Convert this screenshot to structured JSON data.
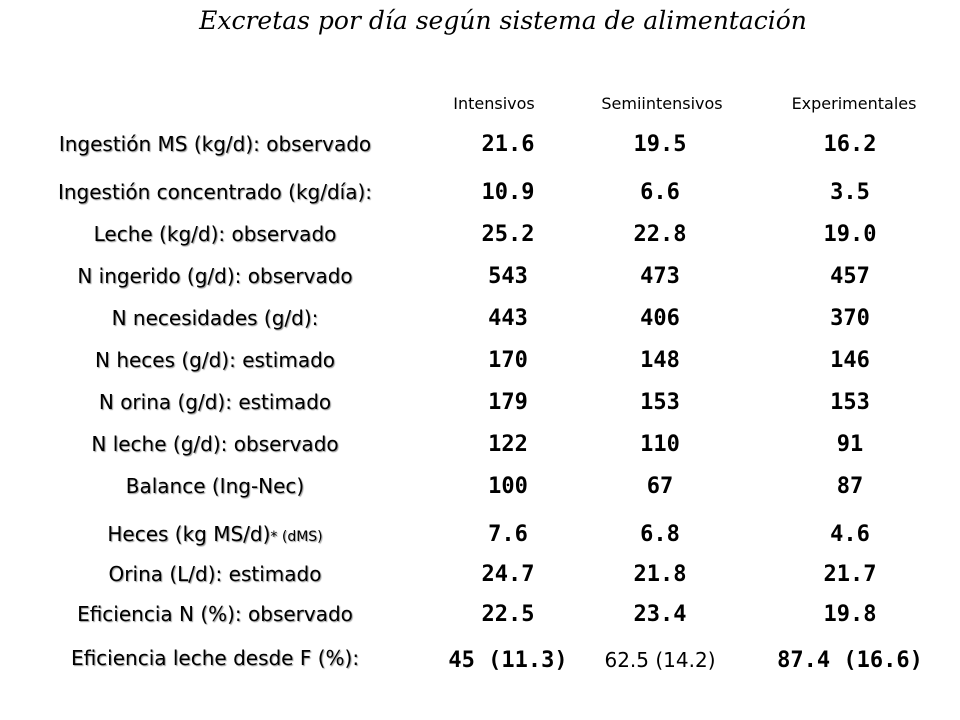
{
  "title": "Excretas por día según sistema de alimentación",
  "columns": [
    "Intensivos",
    "Semiintensivos",
    "Experimentales"
  ],
  "rows": [
    {
      "label": "Ingestión MS (kg/d): observado",
      "note": "",
      "values": [
        "21.6",
        "19.5",
        "16.2"
      ]
    },
    {
      "label": "Ingestión concentrado (kg/día):",
      "note": "",
      "values": [
        "10.9",
        "6.6",
        "3.5"
      ]
    },
    {
      "label": "Leche (kg/d): observado",
      "note": "",
      "values": [
        "25.2",
        "22.8",
        "19.0"
      ]
    },
    {
      "label": "N ingerido (g/d): observado",
      "note": "",
      "values": [
        "543",
        "473",
        "457"
      ]
    },
    {
      "label": "N necesidades (g/d):",
      "note": "",
      "values": [
        "443",
        "406",
        "370"
      ]
    },
    {
      "label": "N heces (g/d): estimado",
      "note": "",
      "values": [
        "170",
        "148",
        "146"
      ]
    },
    {
      "label": "N orina (g/d): estimado",
      "note": "",
      "values": [
        "179",
        "153",
        "153"
      ]
    },
    {
      "label": "N leche (g/d): observado",
      "note": "",
      "values": [
        "122",
        "110",
        "91"
      ]
    },
    {
      "label": "Balance (Ing-Nec)",
      "note": "",
      "values": [
        "100",
        "67",
        "87"
      ]
    },
    {
      "label": "Heces (kg MS/d)",
      "note": "* (dMS)",
      "values": [
        "7.6",
        "6.8",
        "4.6"
      ]
    },
    {
      "label": "Orina (L/d): estimado",
      "note": "",
      "values": [
        "24.7",
        "21.8",
        "21.7"
      ]
    },
    {
      "label": "Eficiencia N (%): observado",
      "note": "",
      "values": [
        "22.5",
        "23.4",
        "19.8"
      ]
    },
    {
      "label": "Eficiencia leche desde F (%):",
      "note": "",
      "values": [
        "45 (11.3)",
        "62.5 (14.2)",
        "87.4 (16.6)"
      ]
    }
  ]
}
